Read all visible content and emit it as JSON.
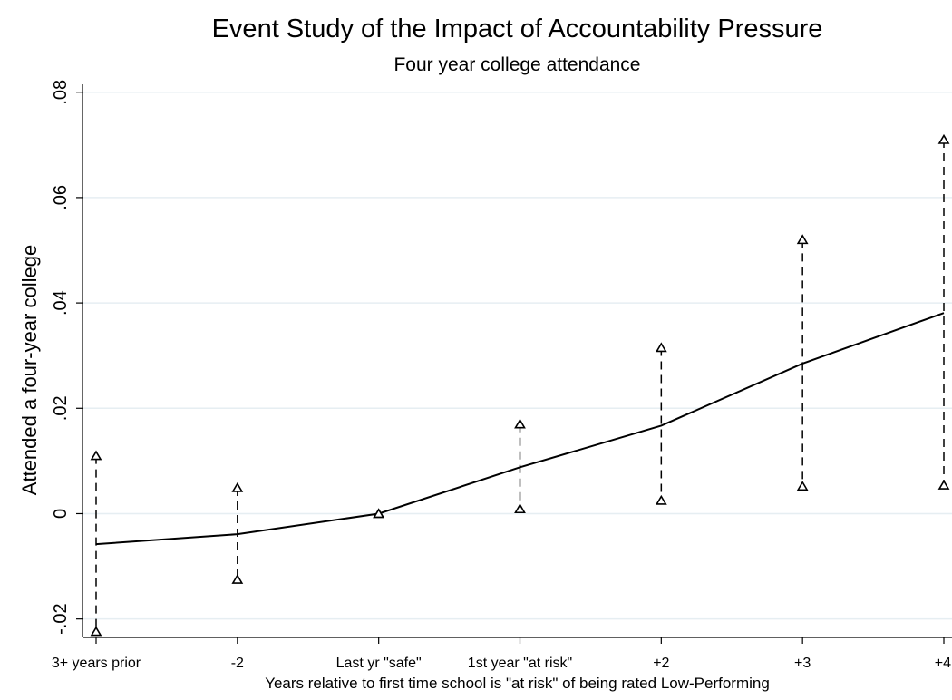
{
  "chart_data": {
    "type": "line",
    "title": "Event Study of the Impact of Accountability Pressure",
    "subtitle": "Four year college attendance",
    "xlabel": "Years relative to first time school is \"at risk\" of being rated Low-Performing",
    "ylabel": "Attended a four-year college",
    "categories": [
      "3+ years prior",
      "-2",
      "Last yr \"safe\"",
      "1st year \"at risk\"",
      "+2",
      "+3",
      "+4"
    ],
    "y_ticks": [
      ".08",
      ".06",
      ".04",
      ".02",
      "0",
      "-.02"
    ],
    "y_tick_values": [
      0.08,
      0.06,
      0.04,
      0.02,
      0,
      -0.02
    ],
    "ylim": [
      -0.0235,
      0.0815
    ],
    "grid": true,
    "series": [
      {
        "role": "estimate",
        "style": "solid line",
        "values": [
          -0.0058,
          -0.0039,
          0.0,
          0.0088,
          0.0167,
          0.0285,
          0.0381
        ]
      },
      {
        "role": "upper bound",
        "style": "triangle markers, dashed connector",
        "values": [
          0.011,
          0.0049,
          0.0,
          0.017,
          0.0315,
          0.052,
          0.071
        ]
      },
      {
        "role": "lower bound",
        "style": "triangle markers, dashed connector",
        "values": [
          -0.0224,
          -0.0125,
          0.0,
          0.0009,
          0.0025,
          0.0052,
          0.0054
        ]
      }
    ]
  }
}
